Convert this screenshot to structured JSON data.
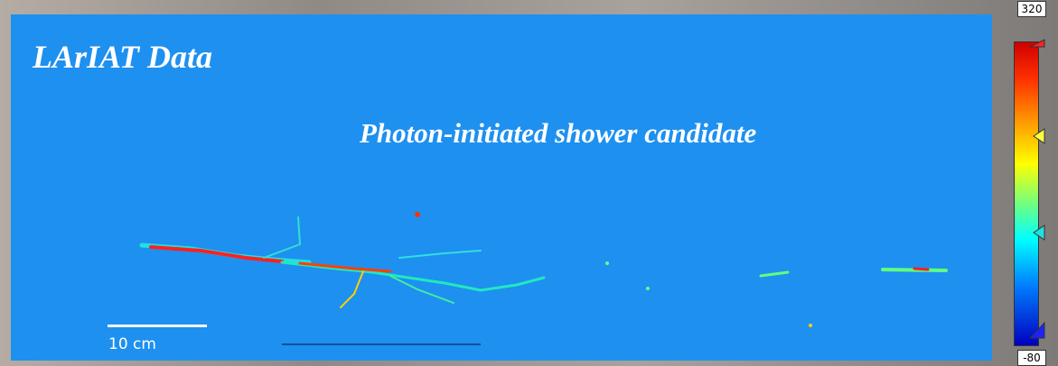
{
  "title": "LArIAT Data",
  "subtitle": "Photon-initiated shower candidate",
  "scale_bar": "10 cm",
  "colorbar": {
    "max": 320,
    "min": -80
  }
}
